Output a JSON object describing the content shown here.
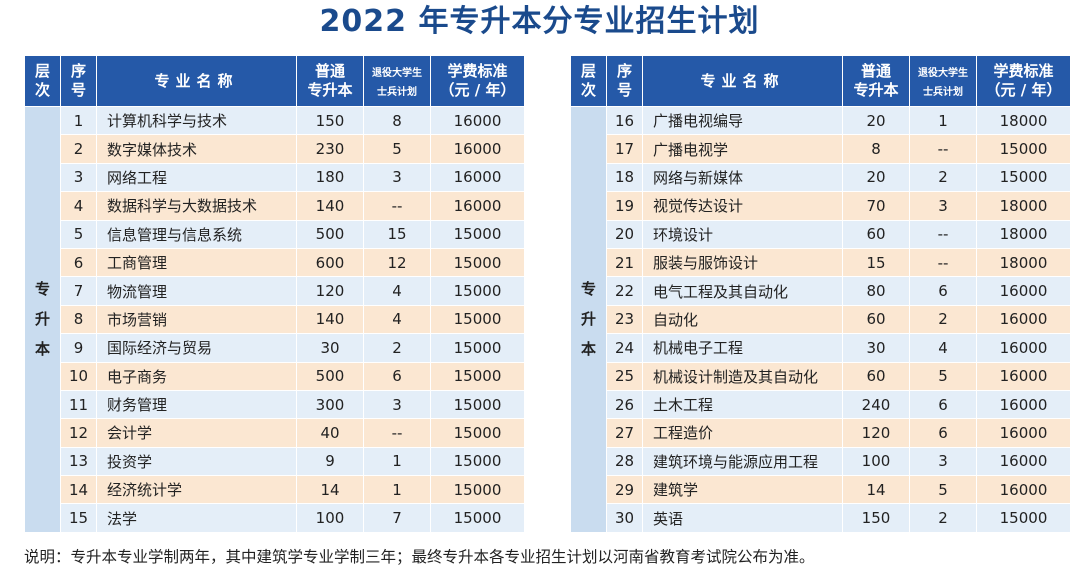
{
  "title": "2022 年专升本分专业招生计划",
  "headers": {
    "level": [
      "层",
      "次"
    ],
    "seq": [
      "序",
      "号"
    ],
    "name": "专业名称",
    "regular": [
      "普通",
      "专升本"
    ],
    "veteran": [
      "退役大学生",
      "士兵计划"
    ],
    "fee": [
      "学费标准",
      "（元 / 年）"
    ]
  },
  "level_label": [
    "专",
    "升",
    "本"
  ],
  "left_rows": [
    {
      "no": "1",
      "name": "计算机科学与技术",
      "regular": "150",
      "veteran": "8",
      "fee": "16000"
    },
    {
      "no": "2",
      "name": "数字媒体技术",
      "regular": "230",
      "veteran": "5",
      "fee": "16000"
    },
    {
      "no": "3",
      "name": "网络工程",
      "regular": "180",
      "veteran": "3",
      "fee": "16000"
    },
    {
      "no": "4",
      "name": "数据科学与大数据技术",
      "regular": "140",
      "veteran": "--",
      "fee": "16000"
    },
    {
      "no": "5",
      "name": "信息管理与信息系统",
      "regular": "500",
      "veteran": "15",
      "fee": "15000"
    },
    {
      "no": "6",
      "name": "工商管理",
      "regular": "600",
      "veteran": "12",
      "fee": "15000"
    },
    {
      "no": "7",
      "name": "物流管理",
      "regular": "120",
      "veteran": "4",
      "fee": "15000"
    },
    {
      "no": "8",
      "name": "市场营销",
      "regular": "140",
      "veteran": "4",
      "fee": "15000"
    },
    {
      "no": "9",
      "name": "国际经济与贸易",
      "regular": "30",
      "veteran": "2",
      "fee": "15000"
    },
    {
      "no": "10",
      "name": "电子商务",
      "regular": "500",
      "veteran": "6",
      "fee": "15000"
    },
    {
      "no": "11",
      "name": "财务管理",
      "regular": "300",
      "veteran": "3",
      "fee": "15000"
    },
    {
      "no": "12",
      "name": "会计学",
      "regular": "40",
      "veteran": "--",
      "fee": "15000"
    },
    {
      "no": "13",
      "name": "投资学",
      "regular": "9",
      "veteran": "1",
      "fee": "15000"
    },
    {
      "no": "14",
      "name": "经济统计学",
      "regular": "14",
      "veteran": "1",
      "fee": "15000"
    },
    {
      "no": "15",
      "name": "法学",
      "regular": "100",
      "veteran": "7",
      "fee": "15000"
    }
  ],
  "right_rows": [
    {
      "no": "16",
      "name": "广播电视编导",
      "regular": "20",
      "veteran": "1",
      "fee": "18000"
    },
    {
      "no": "17",
      "name": "广播电视学",
      "regular": "8",
      "veteran": "--",
      "fee": "15000"
    },
    {
      "no": "18",
      "name": "网络与新媒体",
      "regular": "20",
      "veteran": "2",
      "fee": "15000"
    },
    {
      "no": "19",
      "name": "视觉传达设计",
      "regular": "70",
      "veteran": "3",
      "fee": "18000"
    },
    {
      "no": "20",
      "name": "环境设计",
      "regular": "60",
      "veteran": "--",
      "fee": "18000"
    },
    {
      "no": "21",
      "name": "服装与服饰设计",
      "regular": "15",
      "veteran": "--",
      "fee": "18000"
    },
    {
      "no": "22",
      "name": "电气工程及其自动化",
      "regular": "80",
      "veteran": "6",
      "fee": "16000"
    },
    {
      "no": "23",
      "name": "自动化",
      "regular": "60",
      "veteran": "2",
      "fee": "16000"
    },
    {
      "no": "24",
      "name": "机械电子工程",
      "regular": "30",
      "veteran": "4",
      "fee": "16000"
    },
    {
      "no": "25",
      "name": "机械设计制造及其自动化",
      "regular": "60",
      "veteran": "5",
      "fee": "16000"
    },
    {
      "no": "26",
      "name": "土木工程",
      "regular": "240",
      "veteran": "6",
      "fee": "16000"
    },
    {
      "no": "27",
      "name": "工程造价",
      "regular": "120",
      "veteran": "6",
      "fee": "16000"
    },
    {
      "no": "28",
      "name": "建筑环境与能源应用工程",
      "regular": "100",
      "veteran": "3",
      "fee": "16000"
    },
    {
      "no": "29",
      "name": "建筑学",
      "regular": "14",
      "veteran": "5",
      "fee": "16000"
    },
    {
      "no": "30",
      "name": "英语",
      "regular": "150",
      "veteran": "2",
      "fee": "15000"
    }
  ],
  "note": "说明：专升本专业学制两年，其中建筑学专业学制三年；最终专升本各专业招生计划以河南省教育考试院公布为准。",
  "colors": {
    "header": "#2559a8",
    "title": "#1a4a8c",
    "row_blue": "#e4eef8",
    "row_orange": "#fbe7d2",
    "level_col": "#c9dcef"
  }
}
